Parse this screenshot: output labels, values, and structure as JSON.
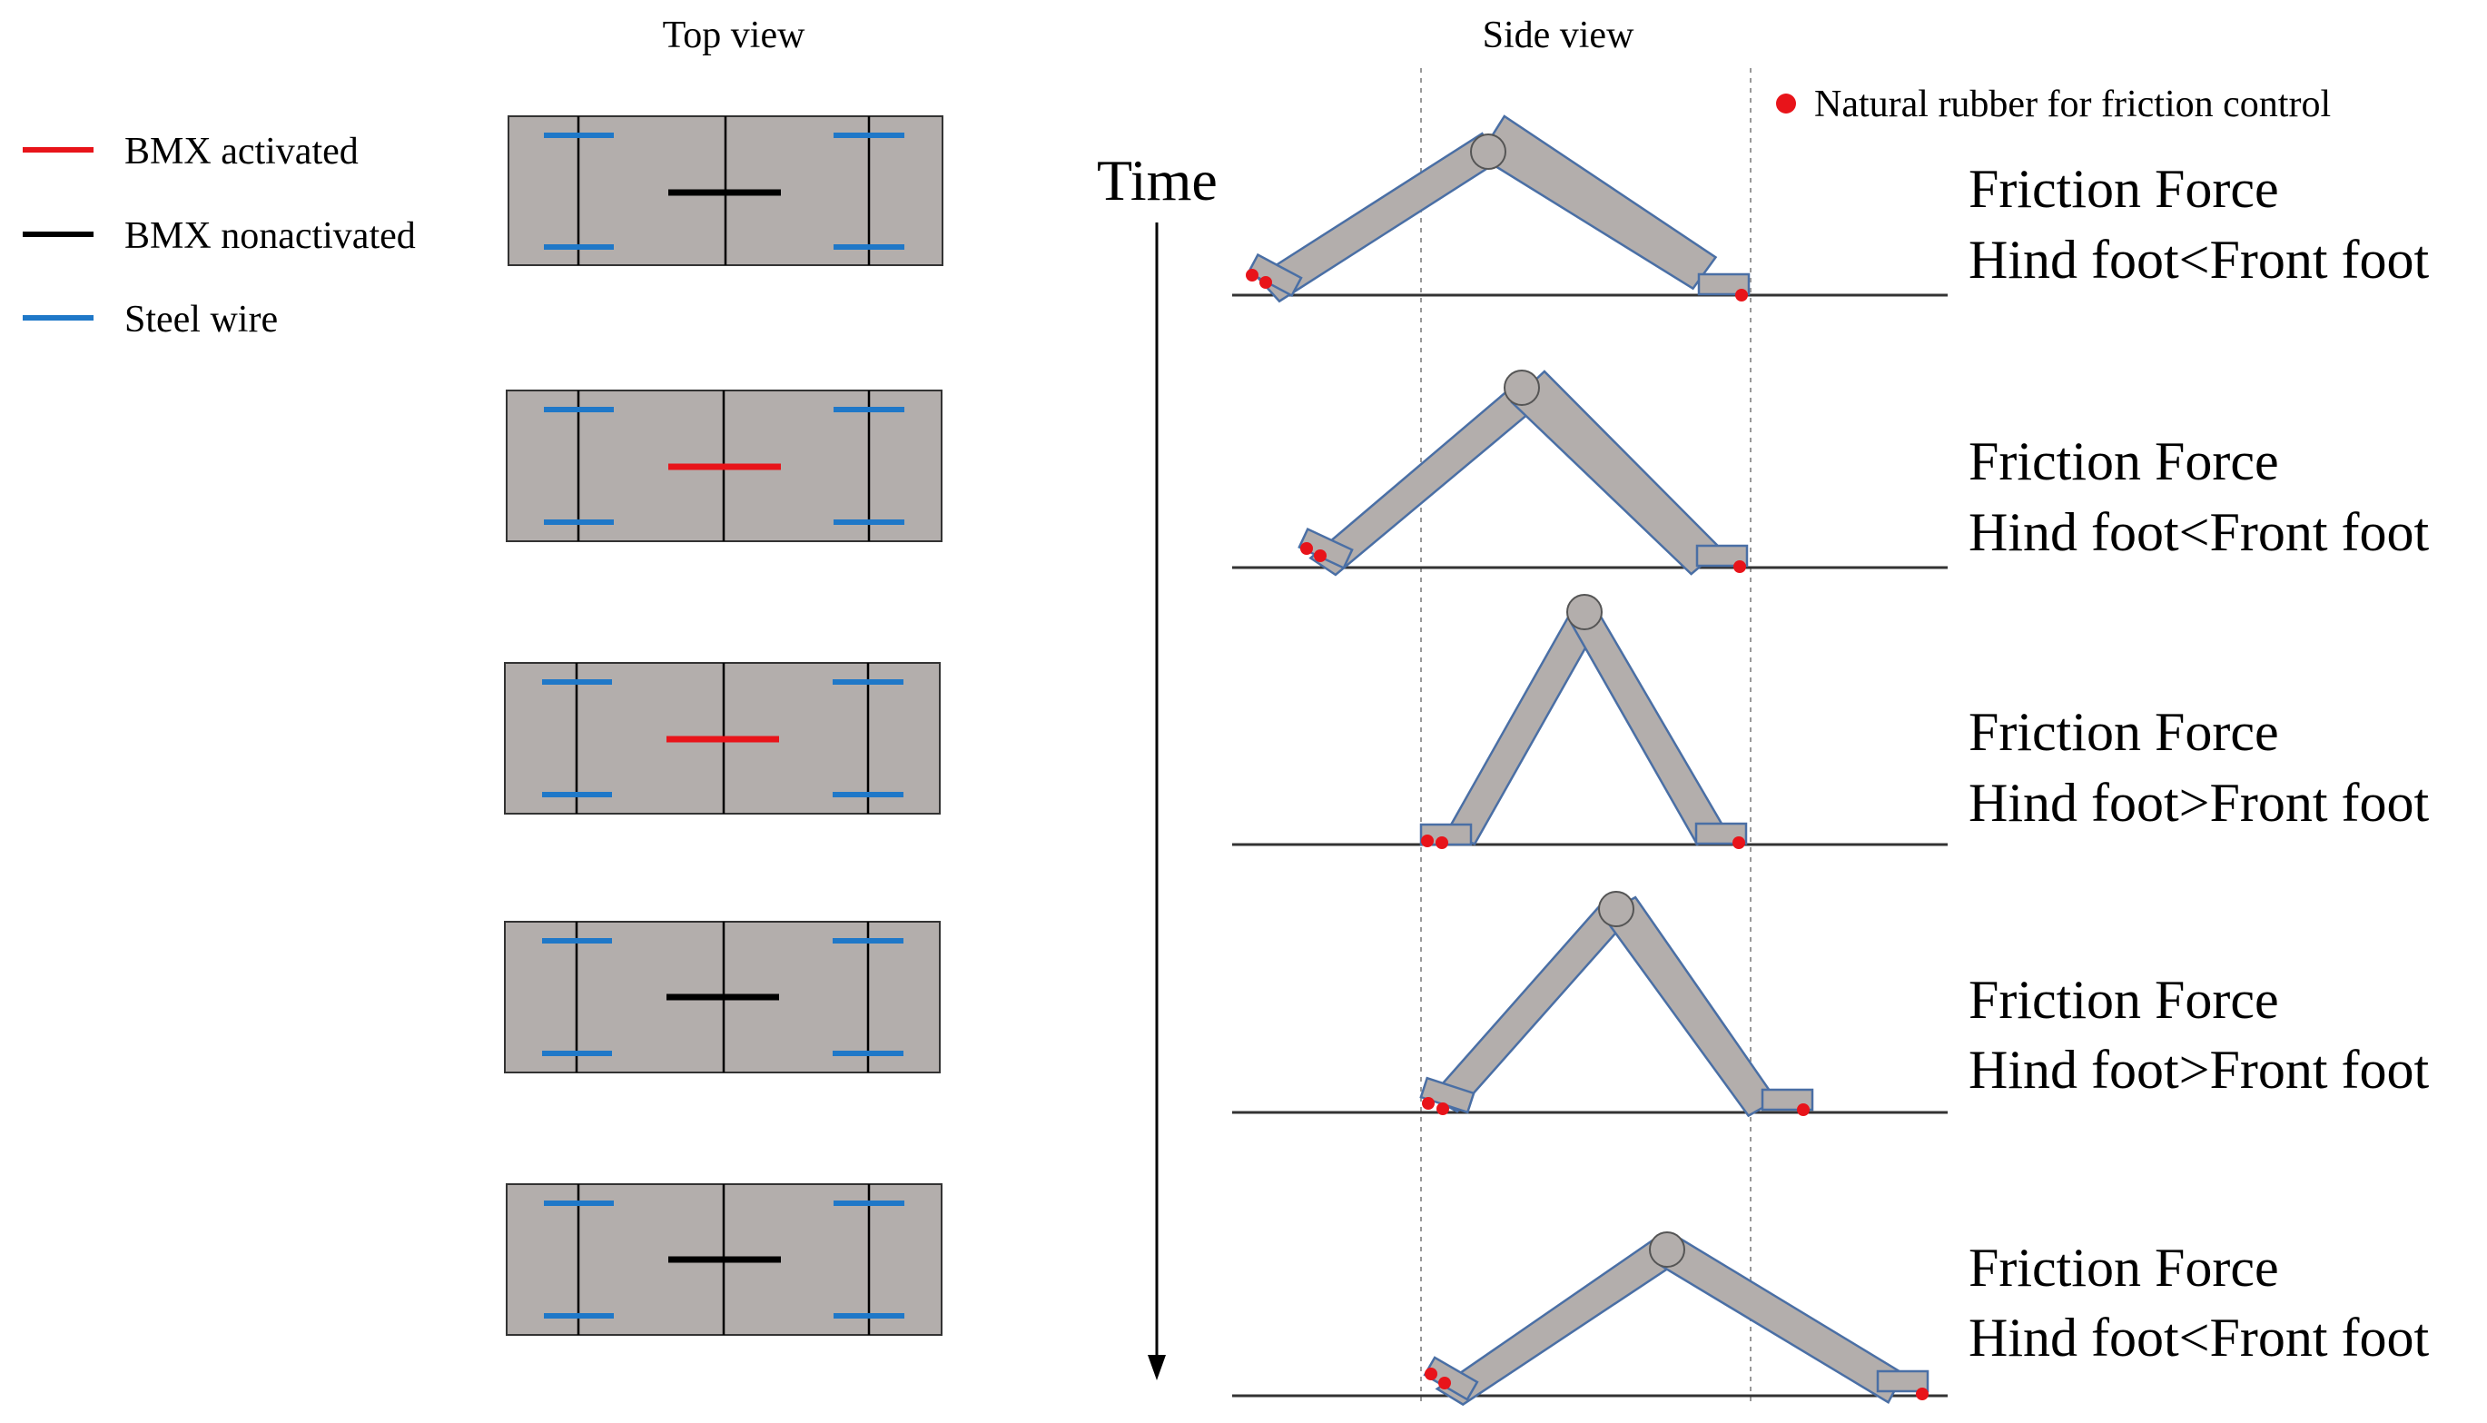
{
  "headers": {
    "top_view": "Top view",
    "side_view": "Side view"
  },
  "legend": [
    {
      "label": "BMX activated",
      "color": "#e8141a"
    },
    {
      "label": "BMX nonactivated",
      "color": "#000000"
    },
    {
      "label": "Steel wire",
      "color": "#1f78c8"
    }
  ],
  "natural_rubber": {
    "label": "Natural rubber for friction control",
    "color": "#e8141a"
  },
  "time_label": "Time",
  "top_views": [
    {
      "bmx_state": "nonactivated"
    },
    {
      "bmx_state": "activated"
    },
    {
      "bmx_state": "activated"
    },
    {
      "bmx_state": "nonactivated"
    },
    {
      "bmx_state": "nonactivated"
    }
  ],
  "side_views": [
    {
      "line1": "Friction Force",
      "line2": "Hind foot<Front foot"
    },
    {
      "line1": "Friction Force",
      "line2": "Hind foot<Front foot"
    },
    {
      "line1": "Friction Force",
      "line2": "Hind foot>Front foot"
    },
    {
      "line1": "Friction Force",
      "line2": "Hind foot>Front foot"
    },
    {
      "line1": "Friction Force",
      "line2": "Hind foot<Front foot"
    }
  ],
  "colors": {
    "body_fill": "#b3aeac",
    "body_stroke": "#4a6fa5",
    "rubber": "#e8141a"
  }
}
